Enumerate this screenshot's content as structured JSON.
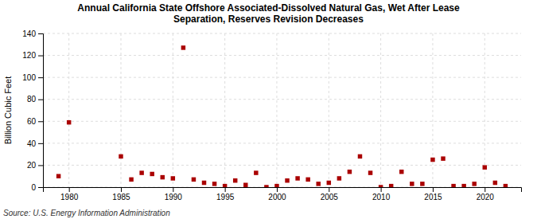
{
  "chart_data": {
    "type": "scatter",
    "title": "Annual California State Offshore Associated-Dissolved Natural Gas, Wet After Lease\nSeparation, Reserves Revision Decreases",
    "ylabel": "Billion Cubic Feet",
    "annotations": [
      "Source: U.S. Energy Information Administration"
    ],
    "x": [
      1979,
      1980,
      1985,
      1986,
      1987,
      1988,
      1989,
      1990,
      1991,
      1992,
      1993,
      1994,
      1995,
      1996,
      1997,
      1998,
      1999,
      2000,
      2001,
      2002,
      2003,
      2004,
      2005,
      2006,
      2007,
      2008,
      2009,
      2010,
      2011,
      2012,
      2013,
      2014,
      2015,
      2016,
      2017,
      2018,
      2019,
      2020,
      2021,
      2022
    ],
    "values": [
      10,
      59,
      28,
      7,
      13,
      12,
      9,
      8,
      127,
      7,
      4,
      3,
      1,
      6,
      2,
      13,
      0,
      1,
      6,
      8,
      7,
      3,
      4,
      8,
      14,
      28,
      13,
      0,
      1,
      14,
      3,
      3,
      25,
      26,
      1,
      1,
      3,
      18,
      4,
      1
    ],
    "color": "#aa0000",
    "marker": "square",
    "xlim": [
      1977.5,
      2023.5
    ],
    "ylim": [
      0,
      140
    ],
    "xticks": [
      1980,
      1985,
      1990,
      1995,
      2000,
      2005,
      2010,
      2015,
      2020
    ],
    "yticks": [
      0,
      20,
      40,
      60,
      80,
      100,
      120,
      140
    ],
    "grid": true
  }
}
